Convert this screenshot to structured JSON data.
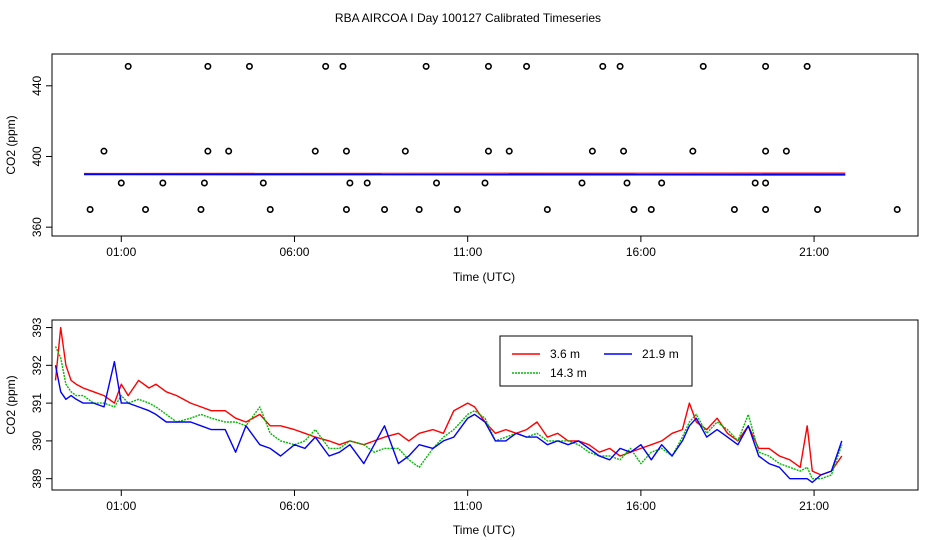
{
  "page_title": "RBA AIRCOA I  Day 100127  Calibrated Timeseries",
  "chart_data": [
    {
      "type": "scatter",
      "xlabel": "Time (UTC)",
      "ylabel": "CO2 (ppm)",
      "xlim": [
        -1.0,
        24.0
      ],
      "ylim": [
        355,
        458
      ],
      "x_ticks": [
        {
          "value": 1,
          "label": "01:00"
        },
        {
          "value": 6,
          "label": "06:00"
        },
        {
          "value": 11,
          "label": "11:00"
        },
        {
          "value": 16,
          "label": "16:00"
        },
        {
          "value": 21,
          "label": "21:00"
        }
      ],
      "y_ticks": [
        {
          "value": 360,
          "label": "360"
        },
        {
          "value": 400,
          "label": "400"
        },
        {
          "value": 440,
          "label": "440"
        }
      ],
      "points": [
        {
          "x": 1.2,
          "y": 451
        },
        {
          "x": 3.5,
          "y": 451
        },
        {
          "x": 4.7,
          "y": 451
        },
        {
          "x": 6.9,
          "y": 451
        },
        {
          "x": 7.4,
          "y": 451
        },
        {
          "x": 9.8,
          "y": 451
        },
        {
          "x": 11.6,
          "y": 451
        },
        {
          "x": 12.7,
          "y": 451
        },
        {
          "x": 14.9,
          "y": 451
        },
        {
          "x": 15.4,
          "y": 451
        },
        {
          "x": 17.8,
          "y": 451
        },
        {
          "x": 19.6,
          "y": 451
        },
        {
          "x": 20.8,
          "y": 451
        },
        {
          "x": 0.5,
          "y": 403
        },
        {
          "x": 3.5,
          "y": 403
        },
        {
          "x": 4.1,
          "y": 403
        },
        {
          "x": 6.6,
          "y": 403
        },
        {
          "x": 7.5,
          "y": 403
        },
        {
          "x": 9.2,
          "y": 403
        },
        {
          "x": 11.6,
          "y": 403
        },
        {
          "x": 12.2,
          "y": 403
        },
        {
          "x": 14.6,
          "y": 403
        },
        {
          "x": 15.5,
          "y": 403
        },
        {
          "x": 17.5,
          "y": 403
        },
        {
          "x": 19.6,
          "y": 403
        },
        {
          "x": 20.2,
          "y": 403
        },
        {
          "x": 1.0,
          "y": 385
        },
        {
          "x": 2.2,
          "y": 385
        },
        {
          "x": 3.4,
          "y": 385
        },
        {
          "x": 5.1,
          "y": 385
        },
        {
          "x": 7.6,
          "y": 385
        },
        {
          "x": 8.1,
          "y": 385
        },
        {
          "x": 10.1,
          "y": 385
        },
        {
          "x": 11.5,
          "y": 385
        },
        {
          "x": 14.3,
          "y": 385
        },
        {
          "x": 15.6,
          "y": 385
        },
        {
          "x": 16.6,
          "y": 385
        },
        {
          "x": 19.3,
          "y": 385
        },
        {
          "x": 19.6,
          "y": 385
        },
        {
          "x": 0.1,
          "y": 370
        },
        {
          "x": 1.7,
          "y": 370
        },
        {
          "x": 3.3,
          "y": 370
        },
        {
          "x": 5.3,
          "y": 370
        },
        {
          "x": 7.5,
          "y": 370
        },
        {
          "x": 8.6,
          "y": 370
        },
        {
          "x": 9.6,
          "y": 370
        },
        {
          "x": 10.7,
          "y": 370
        },
        {
          "x": 13.3,
          "y": 370
        },
        {
          "x": 15.8,
          "y": 370
        },
        {
          "x": 16.3,
          "y": 370
        },
        {
          "x": 18.7,
          "y": 370
        },
        {
          "x": 19.6,
          "y": 370
        },
        {
          "x": 21.1,
          "y": 370
        },
        {
          "x": 23.4,
          "y": 370
        }
      ],
      "line_x_range": [
        -1.0,
        21.9
      ],
      "line_series": [
        {
          "name": "3.6 m",
          "color": "#ff0000",
          "value": 390.2
        },
        {
          "name": "14.3 m",
          "color": "#00bb00",
          "value": 390.0
        },
        {
          "name": "21.9 m",
          "color": "#0000ff",
          "value": 389.9
        }
      ]
    },
    {
      "type": "line",
      "xlabel": "Time (UTC)",
      "ylabel": "CO2 (ppm)",
      "xlim": [
        -1.0,
        24.0
      ],
      "ylim": [
        388.7,
        393.2
      ],
      "x_ticks": [
        {
          "value": 1,
          "label": "01:00"
        },
        {
          "value": 6,
          "label": "06:00"
        },
        {
          "value": 11,
          "label": "11:00"
        },
        {
          "value": 16,
          "label": "16:00"
        },
        {
          "value": 21,
          "label": "21:00"
        }
      ],
      "y_ticks": [
        {
          "value": 389,
          "label": "389"
        },
        {
          "value": 390,
          "label": "390"
        },
        {
          "value": 391,
          "label": "391"
        },
        {
          "value": 392,
          "label": "392"
        },
        {
          "value": 393,
          "label": "393"
        }
      ],
      "legend": {
        "position": "top-center"
      },
      "series": [
        {
          "name": "3.6 m",
          "color": "#ff0000",
          "x": [
            -0.9,
            -0.75,
            -0.6,
            -0.45,
            -0.3,
            -0.1,
            0.2,
            0.5,
            0.8,
            1.0,
            1.2,
            1.5,
            1.8,
            2.0,
            2.3,
            2.6,
            3.0,
            3.3,
            3.6,
            4.0,
            4.3,
            4.6,
            5.0,
            5.3,
            5.6,
            6.0,
            6.3,
            6.6,
            7.0,
            7.3,
            7.6,
            8.0,
            8.3,
            8.6,
            9.0,
            9.3,
            9.6,
            10.0,
            10.3,
            10.6,
            11.0,
            11.2,
            11.5,
            11.8,
            12.1,
            12.4,
            12.7,
            13.0,
            13.3,
            13.6,
            13.9,
            14.2,
            14.5,
            14.8,
            15.1,
            15.4,
            15.7,
            16.0,
            16.3,
            16.6,
            16.9,
            17.2,
            17.4,
            17.6,
            17.9,
            18.2,
            18.5,
            18.8,
            19.1,
            19.4,
            19.7,
            20.0,
            20.3,
            20.6,
            20.8,
            20.95,
            21.2,
            21.5,
            21.8
          ],
          "values": [
            391.6,
            393.0,
            392.0,
            391.6,
            391.5,
            391.4,
            391.3,
            391.2,
            391.0,
            391.5,
            391.2,
            391.6,
            391.4,
            391.5,
            391.3,
            391.2,
            391.0,
            390.9,
            390.8,
            390.8,
            390.6,
            390.5,
            390.7,
            390.4,
            390.4,
            390.3,
            390.2,
            390.1,
            390.0,
            389.9,
            390.0,
            389.9,
            390.0,
            390.1,
            390.2,
            390.0,
            390.2,
            390.3,
            390.2,
            390.8,
            391.0,
            390.9,
            390.5,
            390.2,
            390.3,
            390.2,
            390.3,
            390.5,
            390.1,
            390.2,
            390.0,
            390.0,
            389.9,
            389.7,
            389.8,
            389.6,
            389.7,
            389.8,
            389.9,
            390.0,
            390.2,
            390.3,
            391.0,
            390.5,
            390.3,
            390.6,
            390.2,
            390.0,
            390.4,
            389.8,
            389.8,
            389.6,
            389.5,
            389.3,
            390.4,
            389.2,
            389.1,
            389.2,
            389.6
          ]
        },
        {
          "name": "14.3 m",
          "color": "#00bb00",
          "x": [
            -0.9,
            -0.75,
            -0.6,
            -0.45,
            -0.3,
            -0.1,
            0.2,
            0.5,
            0.8,
            1.0,
            1.2,
            1.5,
            1.8,
            2.0,
            2.3,
            2.6,
            3.0,
            3.3,
            3.6,
            4.0,
            4.3,
            4.6,
            5.0,
            5.3,
            5.6,
            6.0,
            6.3,
            6.6,
            7.0,
            7.3,
            7.6,
            8.0,
            8.3,
            8.6,
            9.0,
            9.3,
            9.6,
            10.0,
            10.3,
            10.6,
            11.0,
            11.2,
            11.5,
            11.8,
            12.1,
            12.4,
            12.7,
            13.0,
            13.3,
            13.6,
            13.9,
            14.2,
            14.5,
            14.8,
            15.1,
            15.4,
            15.7,
            16.0,
            16.3,
            16.6,
            16.9,
            17.2,
            17.4,
            17.6,
            17.9,
            18.2,
            18.5,
            18.8,
            19.1,
            19.4,
            19.7,
            20.0,
            20.3,
            20.6,
            20.8,
            20.95,
            21.2,
            21.5,
            21.8
          ],
          "values": [
            392.5,
            392.2,
            391.5,
            391.3,
            391.2,
            391.2,
            391.0,
            391.0,
            390.9,
            391.2,
            391.0,
            391.1,
            391.0,
            390.9,
            390.7,
            390.5,
            390.6,
            390.7,
            390.6,
            390.5,
            390.5,
            390.4,
            390.9,
            390.2,
            390.0,
            389.9,
            390.0,
            390.3,
            389.8,
            389.8,
            390.0,
            389.9,
            389.7,
            389.8,
            389.8,
            389.5,
            389.3,
            389.8,
            390.1,
            390.3,
            390.7,
            390.8,
            390.6,
            390.0,
            390.1,
            390.2,
            390.1,
            390.2,
            390.0,
            390.0,
            390.0,
            389.9,
            389.7,
            389.6,
            389.6,
            389.5,
            389.8,
            389.4,
            389.7,
            389.8,
            389.6,
            390.1,
            390.5,
            390.7,
            390.2,
            390.5,
            390.3,
            390.0,
            390.7,
            389.7,
            389.6,
            389.4,
            389.3,
            389.2,
            389.3,
            389.0,
            389.0,
            389.1,
            389.9
          ]
        },
        {
          "name": "21.9 m",
          "color": "#0000ff",
          "x": [
            -0.9,
            -0.75,
            -0.6,
            -0.45,
            -0.3,
            -0.1,
            0.2,
            0.5,
            0.8,
            1.0,
            1.2,
            1.5,
            1.8,
            2.0,
            2.3,
            2.6,
            3.0,
            3.3,
            3.6,
            4.0,
            4.3,
            4.6,
            5.0,
            5.3,
            5.6,
            6.0,
            6.3,
            6.6,
            7.0,
            7.3,
            7.6,
            8.0,
            8.3,
            8.6,
            9.0,
            9.3,
            9.6,
            10.0,
            10.3,
            10.6,
            11.0,
            11.2,
            11.5,
            11.8,
            12.1,
            12.4,
            12.7,
            13.0,
            13.3,
            13.6,
            13.9,
            14.2,
            14.5,
            14.8,
            15.1,
            15.4,
            15.7,
            16.0,
            16.3,
            16.6,
            16.9,
            17.2,
            17.4,
            17.6,
            17.9,
            18.2,
            18.5,
            18.8,
            19.1,
            19.4,
            19.7,
            20.0,
            20.3,
            20.6,
            20.8,
            20.95,
            21.2,
            21.5,
            21.8
          ],
          "values": [
            392.0,
            391.3,
            391.1,
            391.2,
            391.1,
            391.0,
            391.0,
            390.9,
            392.1,
            391.0,
            391.0,
            390.9,
            390.8,
            390.7,
            390.5,
            390.5,
            390.5,
            390.4,
            390.3,
            390.3,
            389.7,
            390.4,
            389.9,
            389.8,
            389.6,
            389.9,
            389.8,
            390.1,
            389.6,
            389.7,
            389.9,
            389.4,
            389.9,
            390.4,
            389.4,
            389.6,
            389.9,
            389.8,
            390.0,
            390.1,
            390.6,
            390.7,
            390.5,
            390.0,
            390.0,
            390.2,
            390.1,
            390.1,
            389.9,
            390.0,
            389.9,
            390.0,
            389.8,
            389.6,
            389.5,
            389.8,
            389.7,
            389.9,
            389.5,
            389.9,
            389.6,
            390.0,
            390.4,
            390.6,
            390.1,
            390.3,
            390.1,
            389.9,
            390.4,
            389.6,
            389.4,
            389.3,
            389.0,
            389.0,
            389.0,
            388.9,
            389.1,
            389.2,
            390.0
          ]
        }
      ]
    }
  ]
}
